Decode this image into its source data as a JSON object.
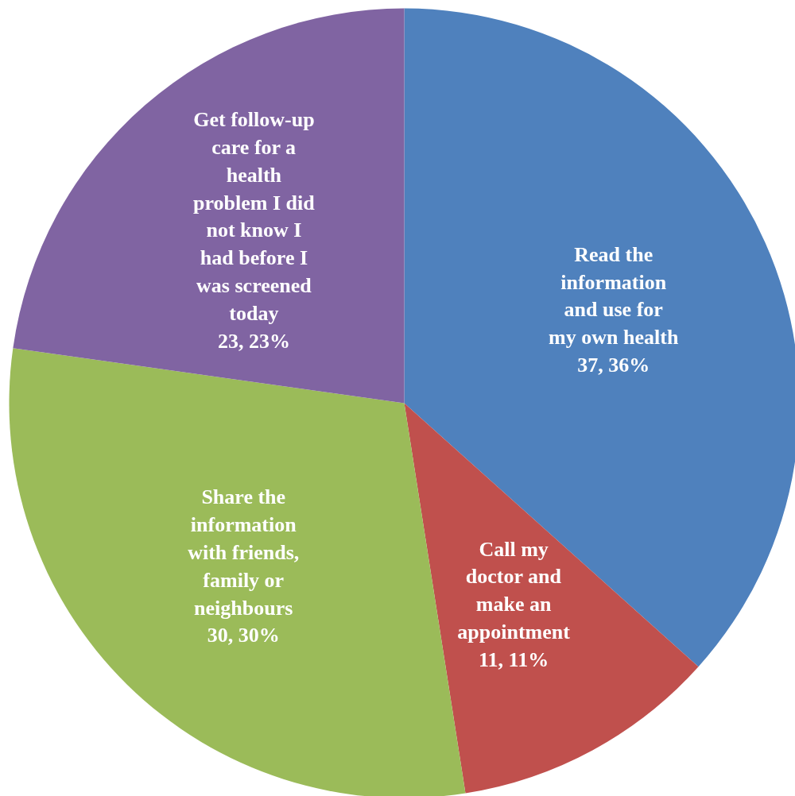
{
  "chart_data": {
    "type": "pie",
    "categories": [
      "Read the information and use for my own health",
      "Call my doctor and make an appointment",
      "Share the information with friends, family or neighbours",
      "Get follow-up care for a health problem I did not know I had before I was screened today"
    ],
    "values": [
      37,
      11,
      30,
      23
    ],
    "colors": [
      "#4f81bd",
      "#c0504d",
      "#9bbb59",
      "#8064a2"
    ],
    "value_labels": [
      "37, 36%",
      "11, 11%",
      "30, 30%",
      "23, 23%"
    ]
  }
}
